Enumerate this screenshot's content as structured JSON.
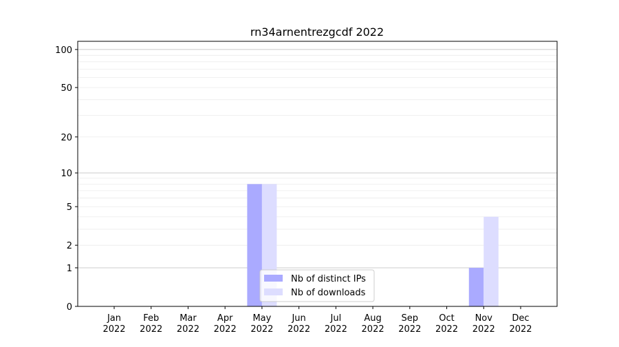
{
  "chart_data": {
    "type": "bar",
    "title": "rn34arnentrezgcdf 2022",
    "xlabel": "",
    "ylabel": "",
    "y_scale": "symlog (log10(1+y))",
    "ylim": [
      0,
      116
    ],
    "y_ticks": [
      0,
      1,
      2,
      5,
      10,
      20,
      50,
      100
    ],
    "grid": true,
    "legend_position": "bottom-center",
    "categories": [
      "Jan\n2022",
      "Feb\n2022",
      "Mar\n2022",
      "Apr\n2022",
      "May\n2022",
      "Jun\n2022",
      "Jul\n2022",
      "Aug\n2022",
      "Sep\n2022",
      "Oct\n2022",
      "Nov\n2022",
      "Dec\n2022"
    ],
    "series": [
      {
        "name": "Nb of distinct IPs",
        "color": "#aaaaff",
        "values": [
          0,
          0,
          0,
          0,
          8,
          0,
          0,
          0,
          0,
          0,
          1,
          0
        ]
      },
      {
        "name": "Nb of downloads",
        "color": "#ddddff",
        "values": [
          0,
          0,
          0,
          0,
          8,
          0,
          0,
          0,
          0,
          0,
          4,
          0
        ]
      }
    ]
  }
}
